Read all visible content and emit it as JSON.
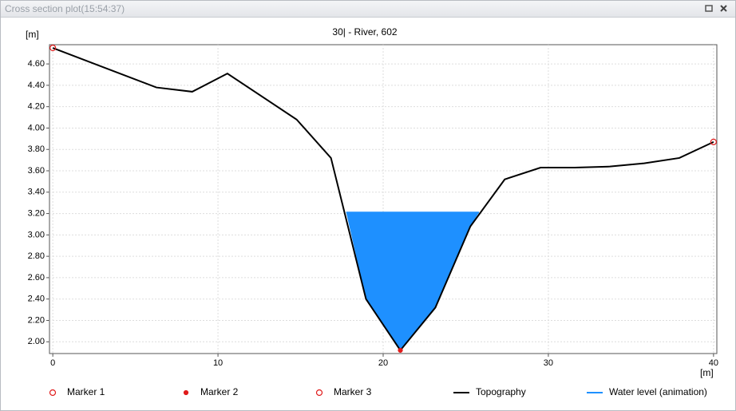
{
  "window": {
    "title": "Cross section plot(15:54:37)"
  },
  "chart_data": {
    "type": "line",
    "title": "30| - River, 602",
    "y_label": "[m]",
    "x_label": "[m]",
    "xlim": [
      -0.2,
      40.2
    ],
    "xticks": [
      0,
      10,
      20,
      30,
      40
    ],
    "ylim": [
      1.89,
      4.78
    ],
    "yticks": [
      {
        "value": 2,
        "label": "2.00"
      },
      {
        "value": 2.2,
        "label": "2.20"
      },
      {
        "value": 2.4,
        "label": "2.40"
      },
      {
        "value": 2.6,
        "label": "2.60"
      },
      {
        "value": 2.8,
        "label": "2.80"
      },
      {
        "value": 3,
        "label": "3.00"
      },
      {
        "value": 3.2,
        "label": "3.20"
      },
      {
        "value": 3.4,
        "label": "3.40"
      },
      {
        "value": 3.6,
        "label": "3.60"
      },
      {
        "value": 3.8,
        "label": "3.80"
      },
      {
        "value": 4,
        "label": "4.00"
      },
      {
        "value": 4.2,
        "label": "4.20"
      },
      {
        "value": 4.4,
        "label": "4.40"
      },
      {
        "value": 4.6,
        "label": "4.60"
      }
    ],
    "grid": true,
    "series": [
      {
        "name": "Marker 1",
        "color": "#e01b1b",
        "marker": "open",
        "x": [
          0
        ],
        "values": [
          4.75
        ]
      },
      {
        "name": "Marker 2",
        "color": "#e01b1b",
        "marker": "filled",
        "x": [
          21.04
        ],
        "values": [
          1.92
        ]
      },
      {
        "name": "Marker 3",
        "color": "#e01b1b",
        "marker": "open",
        "x": [
          40
        ],
        "values": [
          3.87
        ]
      },
      {
        "name": "Topography",
        "color": "#000000",
        "x": [
          0,
          6.27,
          8.44,
          10.57,
          14.76,
          16.84,
          18.96,
          21.04,
          23.16,
          25.28,
          27.36,
          29.53,
          31.6,
          33.73,
          35.8,
          37.93,
          40
        ],
        "values": [
          4.75,
          4.38,
          4.34,
          4.51,
          4.08,
          3.72,
          2.4,
          1.92,
          2.32,
          3.08,
          3.52,
          3.63,
          3.63,
          3.64,
          3.67,
          3.72,
          3.87
        ]
      },
      {
        "name": "Water level (animation)",
        "color": "#1e90ff",
        "fill": true,
        "x": [
          17.76,
          25.8
        ],
        "values": [
          3.21,
          3.21
        ]
      }
    ]
  }
}
